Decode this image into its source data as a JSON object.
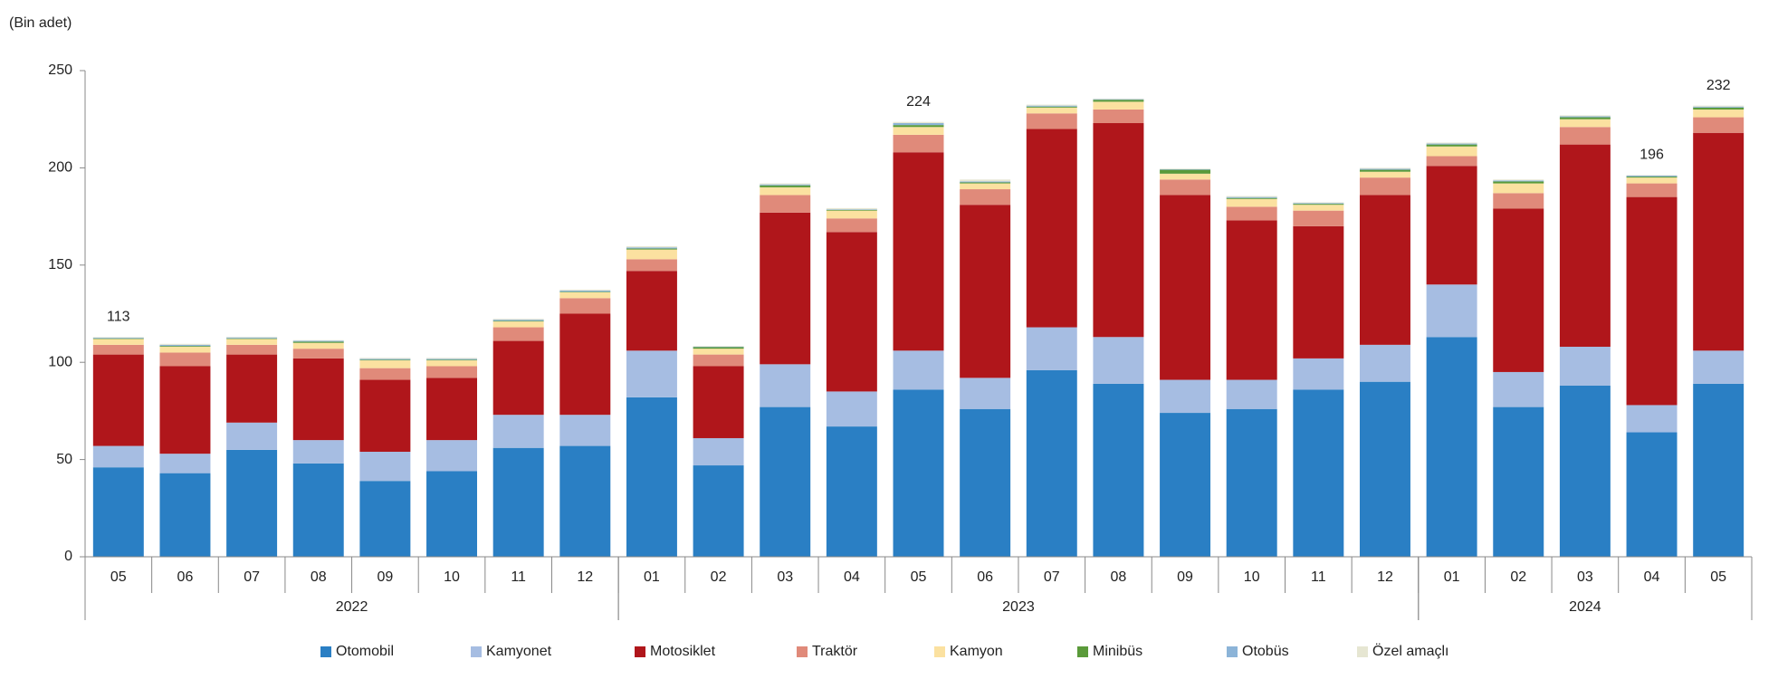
{
  "chart_data": {
    "type": "stacked_bar",
    "y_unit_label": "(Bin adet)",
    "categories": [
      "05",
      "06",
      "07",
      "08",
      "09",
      "10",
      "11",
      "12",
      "01",
      "02",
      "03",
      "04",
      "05",
      "06",
      "07",
      "08",
      "09",
      "10",
      "11",
      "12",
      "01",
      "02",
      "03",
      "04",
      "05"
    ],
    "x_groups": [
      {
        "label": "2022",
        "span": 8
      },
      {
        "label": "2023",
        "span": 12
      },
      {
        "label": "2024",
        "span": 5
      }
    ],
    "series": [
      {
        "name": "Otomobil",
        "color": "#2a7fc4",
        "values": [
          46,
          43,
          55,
          48,
          39,
          44,
          56,
          57,
          82,
          47,
          77,
          67,
          86,
          76,
          96,
          89,
          74,
          76,
          86,
          90,
          113,
          77,
          88,
          64,
          89
        ]
      },
      {
        "name": "Kamyonet",
        "color": "#a6bde2",
        "values": [
          11,
          10,
          14,
          12,
          15,
          16,
          17,
          16,
          24,
          14,
          22,
          18,
          20,
          16,
          22,
          24,
          17,
          15,
          16,
          19,
          27,
          18,
          20,
          14,
          17
        ]
      },
      {
        "name": "Motosiklet",
        "color": "#b0161b",
        "values": [
          47,
          45,
          35,
          42,
          37,
          32,
          38,
          52,
          41,
          37,
          78,
          82,
          102,
          89,
          102,
          110,
          95,
          82,
          68,
          77,
          61,
          84,
          104,
          107,
          112
        ]
      },
      {
        "name": "Traktör",
        "color": "#e08a7a",
        "values": [
          5,
          7,
          5,
          5,
          6,
          6,
          7,
          8,
          6,
          6,
          9,
          7,
          9,
          8,
          8,
          7,
          8,
          7,
          8,
          9,
          5,
          8,
          9,
          7,
          8
        ]
      },
      {
        "name": "Kamyon",
        "color": "#fbe1a0",
        "values": [
          3,
          3,
          3,
          3,
          4,
          3,
          3,
          3,
          5,
          3,
          4,
          4,
          4,
          3,
          3,
          4,
          3,
          4,
          3,
          3,
          5,
          5,
          4,
          3,
          4
        ]
      },
      {
        "name": "Minibüs",
        "color": "#5a9a3a",
        "values": [
          0.3,
          0.4,
          0.3,
          0.6,
          0.3,
          0.3,
          0.3,
          0.3,
          0.5,
          0.8,
          1,
          0.4,
          1,
          0.5,
          0.5,
          1,
          2,
          0.5,
          0.5,
          1,
          1,
          1,
          1,
          0.5,
          1
        ]
      },
      {
        "name": "Otobüs",
        "color": "#8cb4d8",
        "values": [
          0.4,
          0.6,
          0.5,
          0.5,
          0.5,
          0.5,
          0.6,
          0.6,
          0.6,
          0.3,
          0.5,
          0.3,
          1,
          0.5,
          0.5,
          0.3,
          0.3,
          0.5,
          0.4,
          0.5,
          0.5,
          0.5,
          0.5,
          0.5,
          0.5
        ]
      },
      {
        "name": "Özel amaçlı",
        "color": "#e6e6d2",
        "values": [
          0.3,
          0.5,
          0.3,
          0.3,
          0.5,
          0.5,
          0.5,
          0.5,
          0.6,
          0.3,
          0.5,
          0.6,
          0.6,
          1,
          0.5,
          0.3,
          0.3,
          0.5,
          0.4,
          0.5,
          0.5,
          0.5,
          0.5,
          0.3,
          0.5
        ]
      }
    ],
    "totals": [
      113,
      null,
      null,
      null,
      null,
      null,
      null,
      null,
      null,
      null,
      null,
      null,
      224,
      null,
      null,
      null,
      null,
      null,
      null,
      null,
      null,
      null,
      null,
      196,
      232
    ],
    "ylim": [
      0,
      250
    ],
    "yticks": [
      0,
      50,
      100,
      150,
      200,
      250
    ],
    "legend": "bottom"
  }
}
